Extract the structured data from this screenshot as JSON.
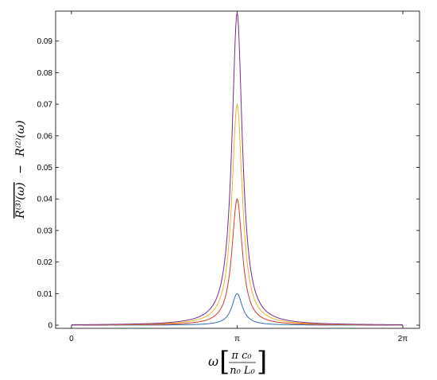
{
  "chart_data": {
    "type": "line",
    "title": "",
    "xlabel": {
      "symbol": "ω",
      "unit_numerator": "π c₀",
      "unit_denominator": "n₀ L₀"
    },
    "ylabel": {
      "term1": "R⁽³⁾(ω)",
      "operator": "−",
      "term2": "R⁽²⁾(ω)"
    },
    "xlim": [
      -0.3,
      6.6
    ],
    "ylim": [
      -0.001,
      0.0995
    ],
    "x_ticks": [
      {
        "value": 0,
        "label": "0"
      },
      {
        "value": 3.14159,
        "label": "π"
      },
      {
        "value": 6.28319,
        "label": "2π"
      }
    ],
    "y_ticks": [
      {
        "value": 0,
        "label": "0"
      },
      {
        "value": 0.01,
        "label": "0.01"
      },
      {
        "value": 0.02,
        "label": "0.02"
      },
      {
        "value": 0.03,
        "label": "0.03"
      },
      {
        "value": 0.04,
        "label": "0.04"
      },
      {
        "value": 0.05,
        "label": "0.05"
      },
      {
        "value": 0.06,
        "label": "0.06"
      },
      {
        "value": 0.07,
        "label": "0.07"
      },
      {
        "value": 0.08,
        "label": "0.08"
      },
      {
        "value": 0.09,
        "label": "0.09"
      }
    ],
    "grid": false,
    "legend": "none",
    "series": [
      {
        "color": "#2f6fb7",
        "peak_x": 3.14159,
        "peak_y": 0.01,
        "half_width": 0.12
      },
      {
        "color": "#d33a2c",
        "peak_x": 3.14159,
        "peak_y": 0.04,
        "half_width": 0.12
      },
      {
        "color": "#f0b428",
        "peak_x": 3.14159,
        "peak_y": 0.07,
        "half_width": 0.12
      },
      {
        "color": "#7a2a8e",
        "peak_x": 3.14159,
        "peak_y": 0.099,
        "half_width": 0.12
      }
    ]
  }
}
